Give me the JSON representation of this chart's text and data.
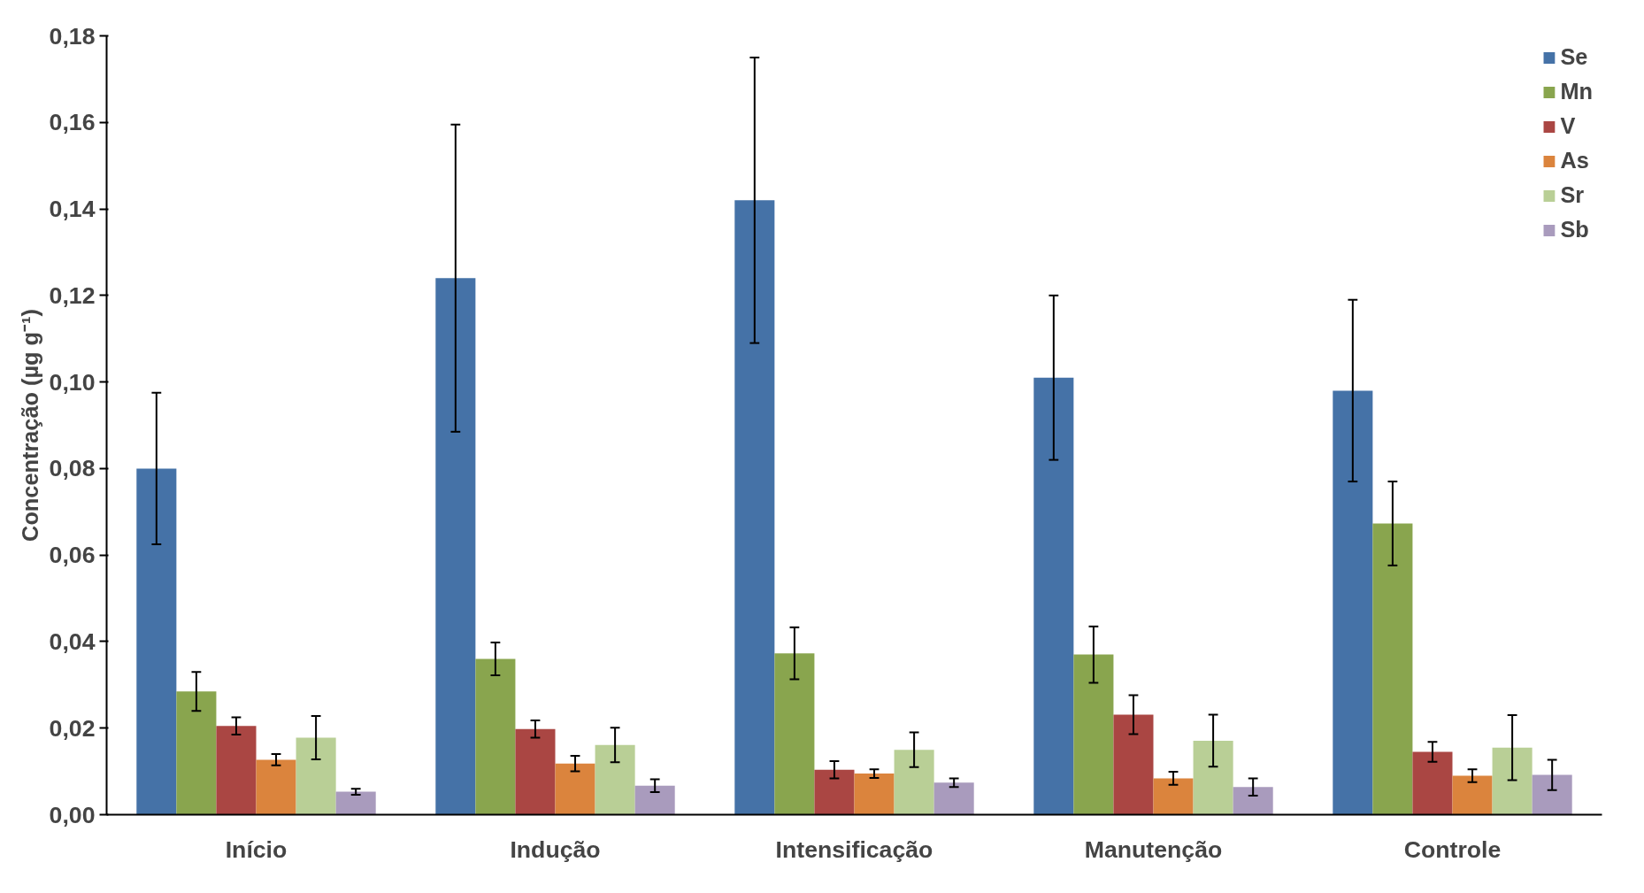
{
  "chart_data": {
    "type": "bar",
    "ylabel": "Concentração (µg g⁻¹)",
    "categories": [
      "Início",
      "Indução",
      "Intensificação",
      "Manutenção",
      "Controle"
    ],
    "series": [
      {
        "name": "Se",
        "color": "#4572a7",
        "values": [
          0.08,
          0.124,
          0.142,
          0.101,
          0.098
        ],
        "errors": [
          0.0175,
          0.0355,
          0.033,
          0.019,
          0.021
        ]
      },
      {
        "name": "Mn",
        "color": "#89a54e",
        "values": [
          0.0285,
          0.036,
          0.0373,
          0.037,
          0.0673
        ],
        "errors": [
          0.0045,
          0.0038,
          0.006,
          0.0065,
          0.0097
        ]
      },
      {
        "name": "V",
        "color": "#aa4643",
        "values": [
          0.0205,
          0.0198,
          0.0104,
          0.0231,
          0.0145
        ],
        "errors": [
          0.002,
          0.002,
          0.002,
          0.0045,
          0.0023
        ]
      },
      {
        "name": "As",
        "color": "#db843d",
        "values": [
          0.0127,
          0.0118,
          0.0095,
          0.0084,
          0.009
        ],
        "errors": [
          0.0013,
          0.0018,
          0.001,
          0.0015,
          0.0015
        ]
      },
      {
        "name": "Sr",
        "color": "#b9cf96",
        "values": [
          0.0178,
          0.0161,
          0.015,
          0.0171,
          0.0155
        ],
        "errors": [
          0.005,
          0.004,
          0.004,
          0.006,
          0.0075
        ]
      },
      {
        "name": "Sb",
        "color": "#a99bbd",
        "values": [
          0.0053,
          0.0067,
          0.0074,
          0.0064,
          0.0092
        ],
        "errors": [
          0.0007,
          0.0015,
          0.001,
          0.002,
          0.0035
        ]
      }
    ],
    "ylim": [
      0,
      0.18
    ],
    "yticks": [
      {
        "value": 0,
        "label": "0,00"
      },
      {
        "value": 0.02,
        "label": "0,02"
      },
      {
        "value": 0.04,
        "label": "0,04"
      },
      {
        "value": 0.06,
        "label": "0,06"
      },
      {
        "value": 0.08,
        "label": "0,08"
      },
      {
        "value": 0.1,
        "label": "0,10"
      },
      {
        "value": 0.12,
        "label": "0,12"
      },
      {
        "value": 0.14,
        "label": "0,14"
      },
      {
        "value": 0.16,
        "label": "0,16"
      },
      {
        "value": 0.18,
        "label": "0,18"
      }
    ],
    "legend": "top right",
    "grid": false
  }
}
